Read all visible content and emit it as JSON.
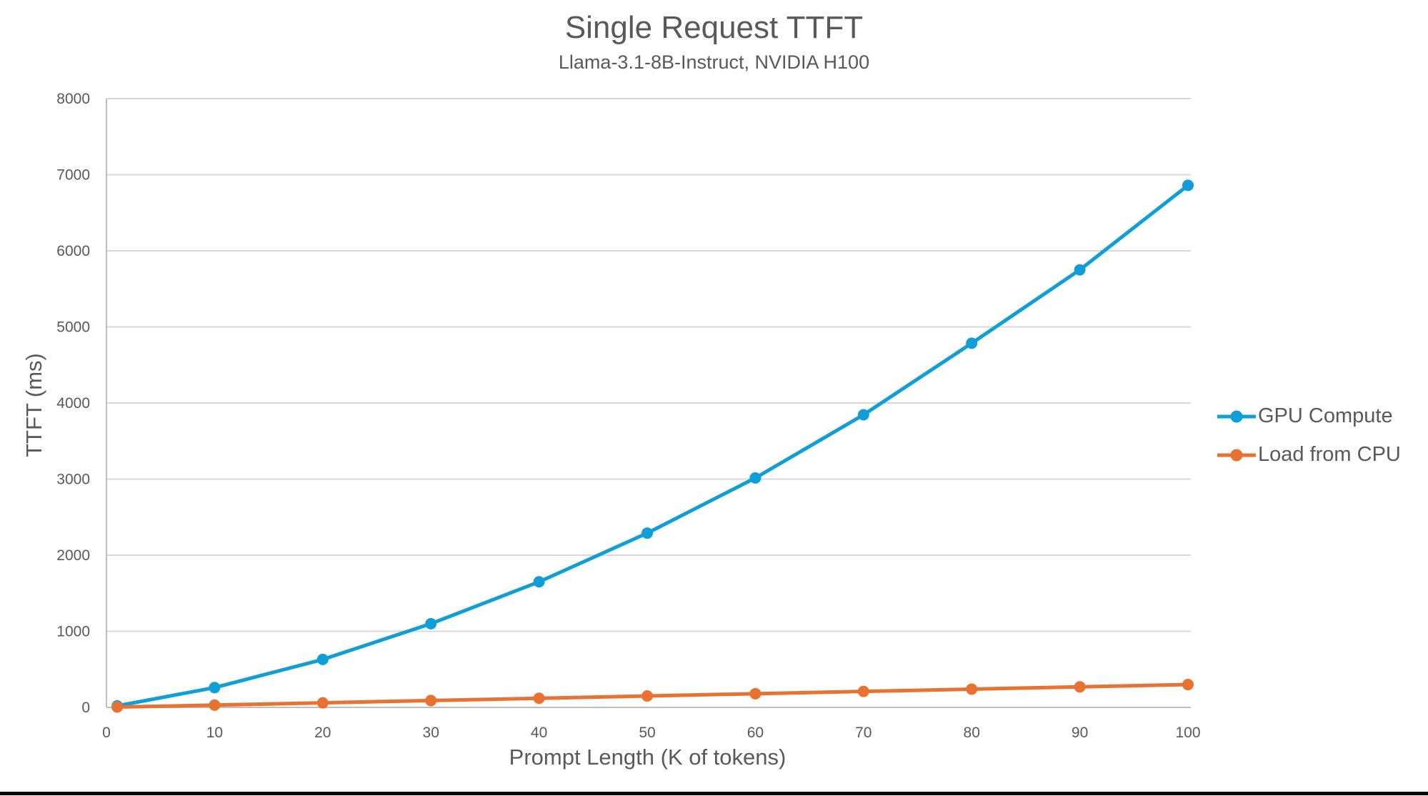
{
  "colors": {
    "background": "#FFFFFF",
    "text": "#595959",
    "gridline": "#D9D9D9",
    "axis_line": "#BFBFBF",
    "bottom_bar": "#0A0A0A",
    "series_blue": "#0F9ED5",
    "series_orange": "#E97132"
  },
  "chart_data": {
    "type": "line",
    "title": "Single Request TTFT",
    "subtitle": "Llama-3.1-8B-Instruct, NVIDIA H100",
    "xlabel": "Prompt Length (K of tokens)",
    "ylabel": "TTFT (ms)",
    "x": [
      1,
      10,
      20,
      30,
      40,
      50,
      60,
      70,
      80,
      90,
      100
    ],
    "series": [
      {
        "name": "GPU Compute",
        "color": "#0F9ED5",
        "values": [
          20,
          260,
          630,
          1100,
          1650,
          2290,
          3015,
          3845,
          4785,
          5750,
          6860
        ]
      },
      {
        "name": "Load from CPU",
        "color": "#E97132",
        "values": [
          5,
          30,
          60,
          90,
          120,
          150,
          180,
          210,
          240,
          270,
          300
        ]
      }
    ],
    "xlim": [
      0,
      100
    ],
    "ylim": [
      0,
      8000
    ],
    "x_ticks": [
      0,
      10,
      20,
      30,
      40,
      50,
      60,
      70,
      80,
      90,
      100
    ],
    "y_ticks": [
      0,
      1000,
      2000,
      3000,
      4000,
      5000,
      6000,
      7000,
      8000
    ],
    "grid": true,
    "legend_position": "right",
    "marker": "circle"
  }
}
